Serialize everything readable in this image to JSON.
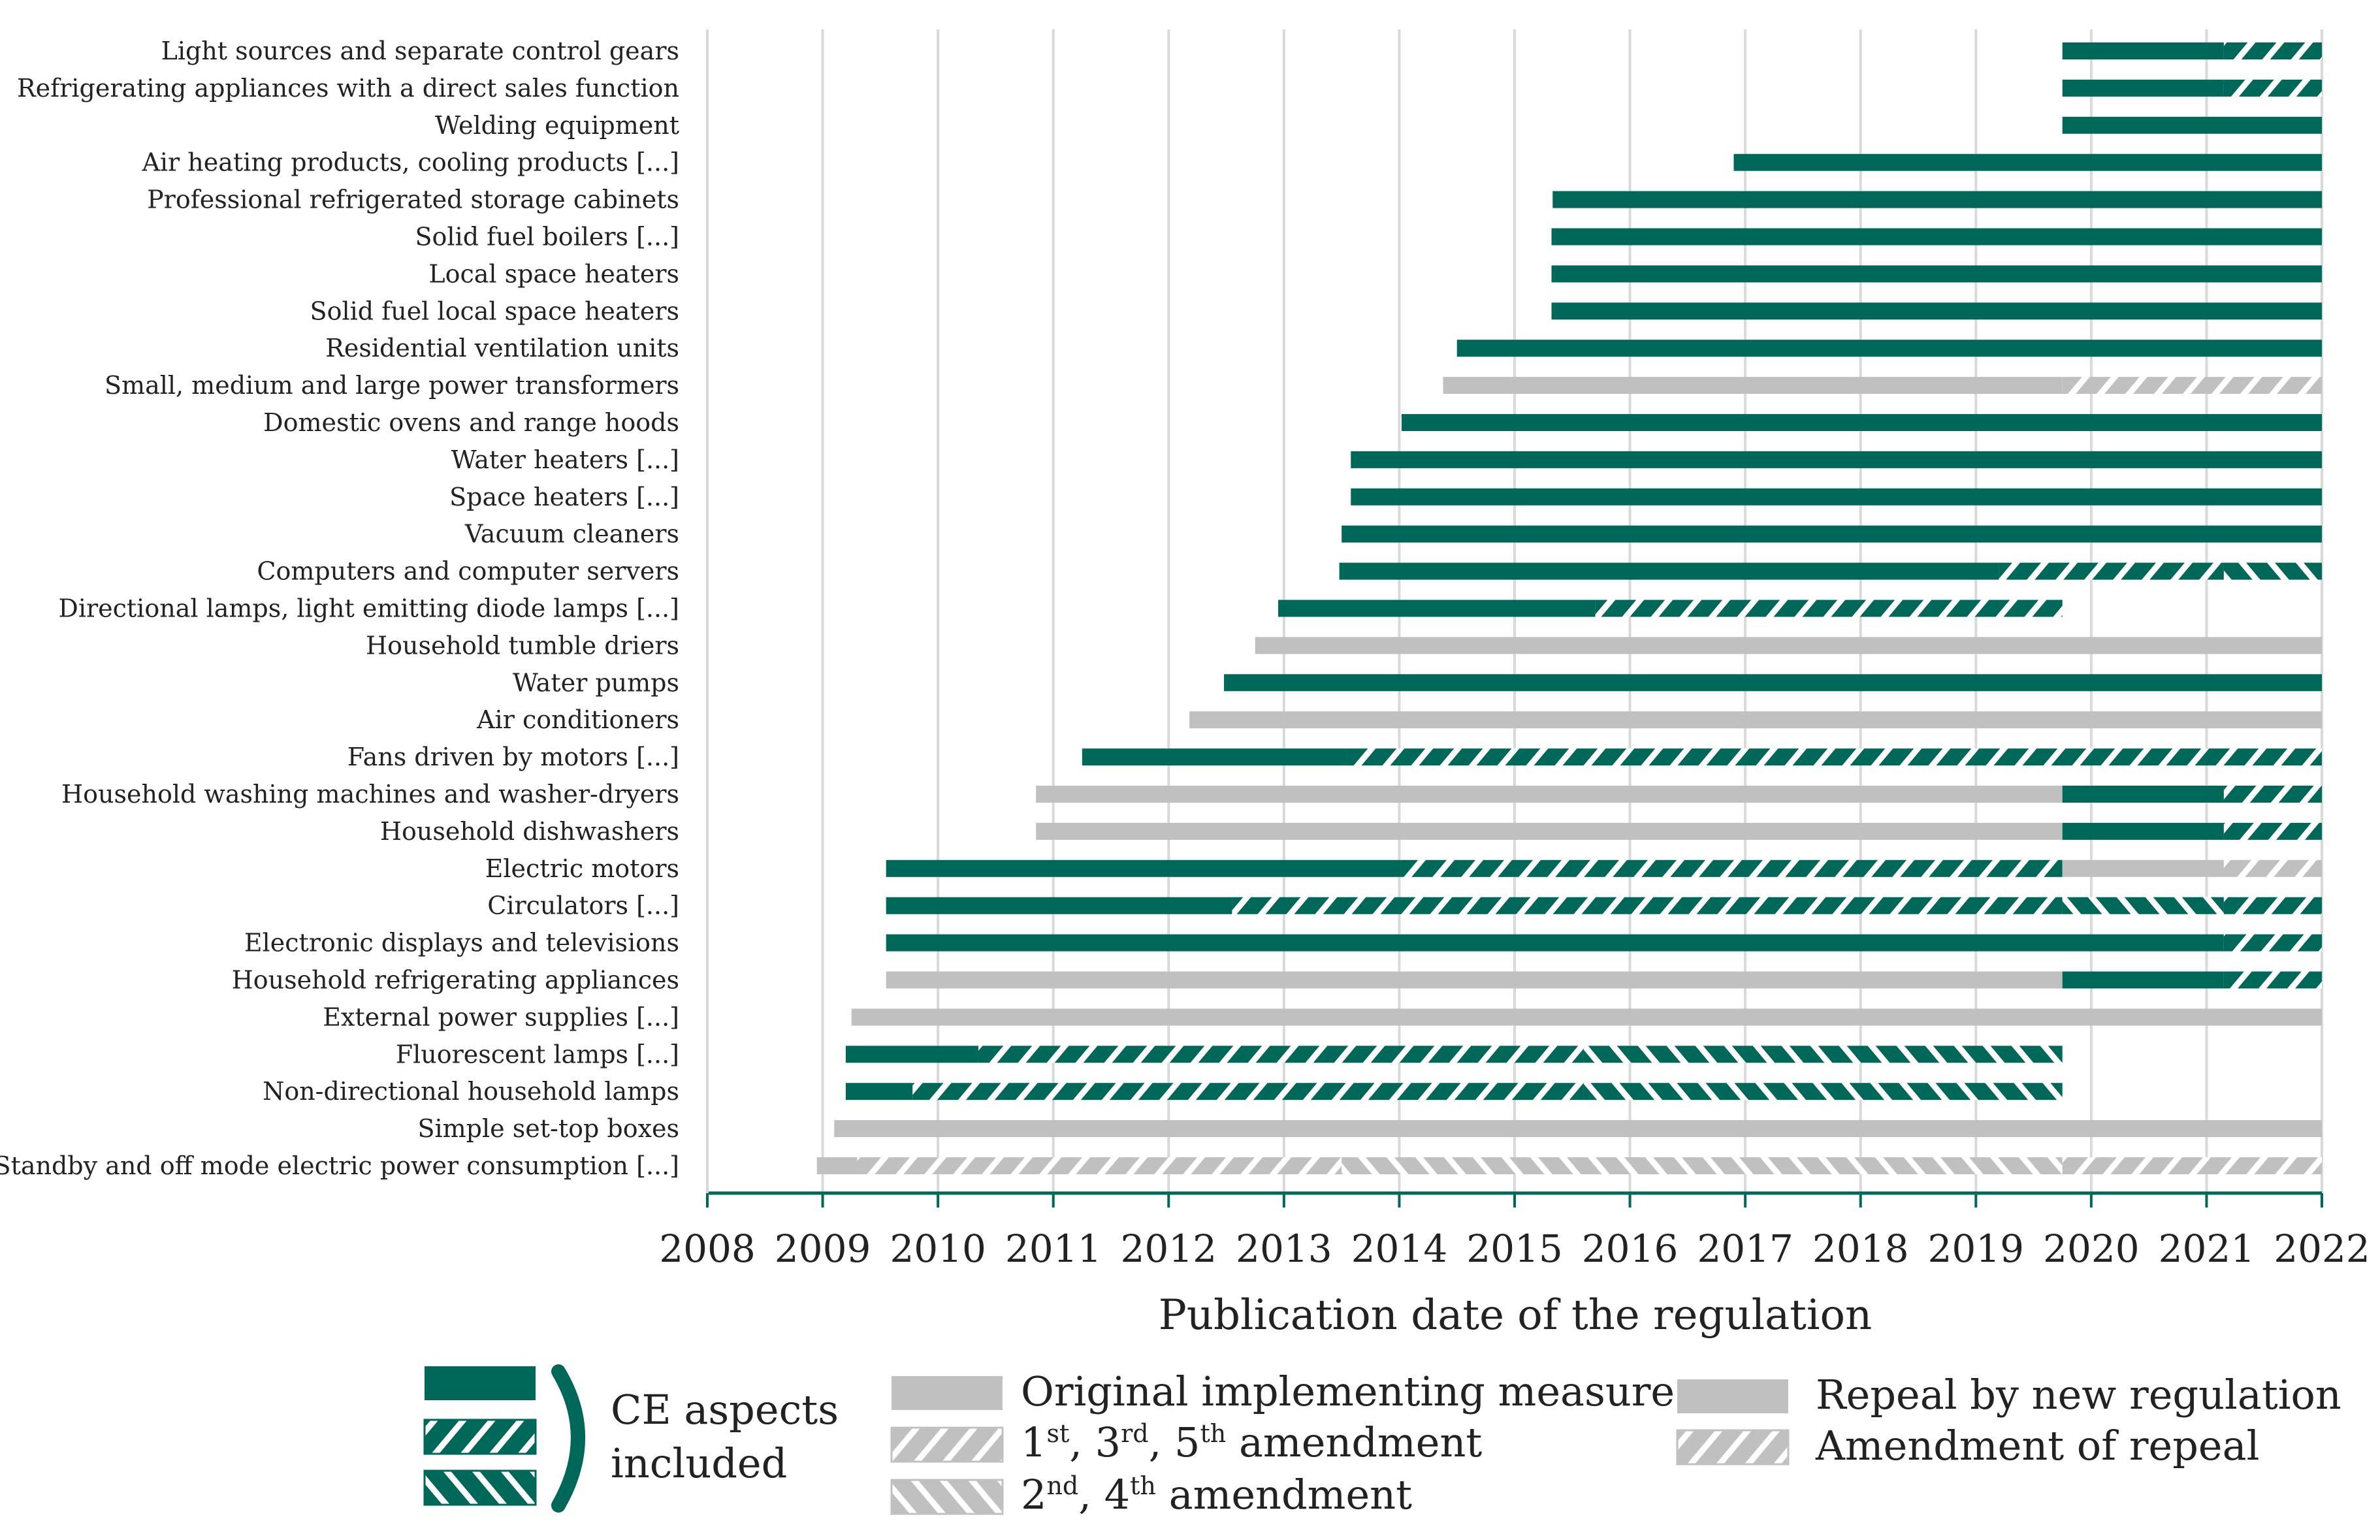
{
  "colors": {
    "ce": "#006858",
    "non_ce": "#c0c0c0",
    "axis": "#006858",
    "grid": "#d9d9d9"
  },
  "chart_data": {
    "type": "gantt-bar",
    "xlabel": "Publication date of the regulation",
    "xlim": [
      2008,
      2022
    ],
    "x_ticks": [
      "2008",
      "2009",
      "2010",
      "2011",
      "2012",
      "2013",
      "2014",
      "2015",
      "2016",
      "2017",
      "2018",
      "2019",
      "2020",
      "2021",
      "2022"
    ],
    "grid": "vertical",
    "categories": [
      {
        "label": "Light sources and separate control gears",
        "segments": [
          {
            "start": 2019.75,
            "end": 2021.15,
            "style": "ce-solid"
          },
          {
            "start": 2021.15,
            "end": 2022.0,
            "style": "ce-fwd"
          }
        ]
      },
      {
        "label": "Refrigerating appliances with a direct sales function",
        "segments": [
          {
            "start": 2019.75,
            "end": 2021.15,
            "style": "ce-solid"
          },
          {
            "start": 2021.15,
            "end": 2022.0,
            "style": "ce-fwd"
          }
        ]
      },
      {
        "label": "Welding equipment",
        "segments": [
          {
            "start": 2019.75,
            "end": 2022.0,
            "style": "ce-solid"
          }
        ]
      },
      {
        "label": "Air heating products, cooling products [...]",
        "segments": [
          {
            "start": 2016.9,
            "end": 2022.0,
            "style": "ce-solid"
          }
        ]
      },
      {
        "label": "Professional refrigerated storage cabinets",
        "segments": [
          {
            "start": 2015.33,
            "end": 2022.0,
            "style": "ce-solid"
          }
        ]
      },
      {
        "label": "Solid fuel boilers [...]",
        "segments": [
          {
            "start": 2015.32,
            "end": 2022.0,
            "style": "ce-solid"
          }
        ]
      },
      {
        "label": "Local space heaters",
        "segments": [
          {
            "start": 2015.32,
            "end": 2022.0,
            "style": "ce-solid"
          }
        ]
      },
      {
        "label": "Solid fuel local space heaters",
        "segments": [
          {
            "start": 2015.32,
            "end": 2022.0,
            "style": "ce-solid"
          }
        ]
      },
      {
        "label": "Residential ventilation units",
        "segments": [
          {
            "start": 2014.5,
            "end": 2022.0,
            "style": "ce-solid"
          }
        ]
      },
      {
        "label": "Small, medium and large power transformers",
        "segments": [
          {
            "start": 2014.38,
            "end": 2019.75,
            "style": "grey-solid"
          },
          {
            "start": 2019.75,
            "end": 2022.0,
            "style": "grey-fwd"
          }
        ]
      },
      {
        "label": "Domestic ovens and range hoods",
        "segments": [
          {
            "start": 2014.02,
            "end": 2022.0,
            "style": "ce-solid"
          }
        ]
      },
      {
        "label": "Water heaters [...]",
        "segments": [
          {
            "start": 2013.58,
            "end": 2022.0,
            "style": "ce-solid"
          }
        ]
      },
      {
        "label": "Space heaters [...]",
        "segments": [
          {
            "start": 2013.58,
            "end": 2022.0,
            "style": "ce-solid"
          }
        ]
      },
      {
        "label": "Vacuum cleaners",
        "segments": [
          {
            "start": 2013.5,
            "end": 2022.0,
            "style": "ce-solid"
          }
        ]
      },
      {
        "label": "Computers and computer servers",
        "segments": [
          {
            "start": 2013.48,
            "end": 2019.2,
            "style": "ce-solid"
          },
          {
            "start": 2019.2,
            "end": 2021.15,
            "style": "ce-fwd"
          },
          {
            "start": 2021.15,
            "end": 2022.0,
            "style": "ce-back"
          }
        ]
      },
      {
        "label": "Directional lamps, light emitting diode lamps [...]",
        "segments": [
          {
            "start": 2012.95,
            "end": 2015.7,
            "style": "ce-solid"
          },
          {
            "start": 2015.7,
            "end": 2019.75,
            "style": "ce-fwd"
          }
        ]
      },
      {
        "label": "Household tumble driers",
        "segments": [
          {
            "start": 2012.75,
            "end": 2022.0,
            "style": "grey-solid"
          }
        ]
      },
      {
        "label": "Water pumps",
        "segments": [
          {
            "start": 2012.48,
            "end": 2022.0,
            "style": "ce-solid"
          }
        ]
      },
      {
        "label": "Air conditioners",
        "segments": [
          {
            "start": 2012.18,
            "end": 2022.0,
            "style": "grey-solid"
          }
        ]
      },
      {
        "label": "Fans driven by motors [...]",
        "segments": [
          {
            "start": 2011.25,
            "end": 2013.55,
            "style": "ce-solid"
          },
          {
            "start": 2013.55,
            "end": 2022.0,
            "style": "ce-fwd"
          }
        ]
      },
      {
        "label": "Household washing machines and washer-dryers",
        "segments": [
          {
            "start": 2010.85,
            "end": 2019.75,
            "style": "grey-solid"
          },
          {
            "start": 2019.75,
            "end": 2021.15,
            "style": "ce-solid"
          },
          {
            "start": 2021.15,
            "end": 2022.0,
            "style": "ce-fwd"
          }
        ]
      },
      {
        "label": "Household dishwashers",
        "segments": [
          {
            "start": 2010.85,
            "end": 2019.75,
            "style": "grey-solid"
          },
          {
            "start": 2019.75,
            "end": 2021.15,
            "style": "ce-solid"
          },
          {
            "start": 2021.15,
            "end": 2022.0,
            "style": "ce-fwd"
          }
        ]
      },
      {
        "label": "Electric motors",
        "segments": [
          {
            "start": 2009.55,
            "end": 2014.02,
            "style": "ce-solid"
          },
          {
            "start": 2014.02,
            "end": 2019.75,
            "style": "ce-fwd"
          },
          {
            "start": 2019.75,
            "end": 2021.15,
            "style": "grey-solid"
          },
          {
            "start": 2021.15,
            "end": 2022.0,
            "style": "grey-fwd"
          }
        ]
      },
      {
        "label": "Circulators [...]",
        "segments": [
          {
            "start": 2009.55,
            "end": 2012.55,
            "style": "ce-solid"
          },
          {
            "start": 2012.55,
            "end": 2019.75,
            "style": "ce-fwd"
          },
          {
            "start": 2019.75,
            "end": 2021.15,
            "style": "ce-back"
          },
          {
            "start": 2021.15,
            "end": 2022.0,
            "style": "ce-fwd"
          }
        ]
      },
      {
        "label": "Electronic displays and televisions",
        "segments": [
          {
            "start": 2009.55,
            "end": 2021.15,
            "style": "ce-solid"
          },
          {
            "start": 2021.15,
            "end": 2022.0,
            "style": "ce-fwd"
          }
        ]
      },
      {
        "label": "Household refrigerating appliances",
        "segments": [
          {
            "start": 2009.55,
            "end": 2019.75,
            "style": "grey-solid"
          },
          {
            "start": 2019.75,
            "end": 2021.15,
            "style": "ce-solid"
          },
          {
            "start": 2021.15,
            "end": 2022.0,
            "style": "ce-fwd"
          }
        ]
      },
      {
        "label": "External power supplies [...]",
        "segments": [
          {
            "start": 2009.25,
            "end": 2022.0,
            "style": "grey-solid"
          }
        ]
      },
      {
        "label": "Fluorescent lamps [...]",
        "segments": [
          {
            "start": 2009.2,
            "end": 2010.35,
            "style": "ce-solid"
          },
          {
            "start": 2010.35,
            "end": 2015.6,
            "style": "ce-fwd"
          },
          {
            "start": 2015.6,
            "end": 2019.75,
            "style": "ce-back"
          }
        ]
      },
      {
        "label": "Non-directional household lamps",
        "segments": [
          {
            "start": 2009.2,
            "end": 2009.78,
            "style": "ce-solid"
          },
          {
            "start": 2009.78,
            "end": 2015.6,
            "style": "ce-fwd"
          },
          {
            "start": 2015.6,
            "end": 2019.75,
            "style": "ce-back"
          }
        ]
      },
      {
        "label": "Simple set-top boxes",
        "segments": [
          {
            "start": 2009.1,
            "end": 2022.0,
            "style": "grey-solid"
          }
        ]
      },
      {
        "label": "Standby and off mode electric power consumption [...]",
        "segments": [
          {
            "start": 2008.95,
            "end": 2009.3,
            "style": "grey-solid"
          },
          {
            "start": 2009.3,
            "end": 2013.5,
            "style": "grey-fwd"
          },
          {
            "start": 2013.5,
            "end": 2019.75,
            "style": "grey-back"
          },
          {
            "start": 2019.75,
            "end": 2022.0,
            "style": "grey-fwd"
          }
        ]
      }
    ],
    "legend": {
      "ce_group_label_line1": "CE aspects",
      "ce_group_label_line2": "included",
      "original": "Original implementing measure",
      "amend_odd_1": "1",
      "amend_odd_1_sup": "st",
      "amend_odd_3": ", 3",
      "amend_odd_3_sup": "rd",
      "amend_odd_5": ", 5",
      "amend_odd_5_sup": "th",
      "amend_odd_tail": " amendment",
      "amend_even_2": "2",
      "amend_even_2_sup": "nd",
      "amend_even_4": ", 4",
      "amend_even_4_sup": "th",
      "amend_even_tail": " amendment",
      "repeal": "Repeal by new regulation",
      "amend_repeal": "Amendment of repeal"
    }
  }
}
